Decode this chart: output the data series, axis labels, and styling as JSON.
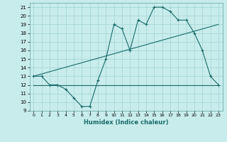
{
  "xlabel": "Humidex (Indice chaleur)",
  "ylabel": "",
  "bg_color": "#c8ecec",
  "grid_color": "#a8d8d8",
  "line_color": "#1a6b6b",
  "xlim": [
    -0.5,
    23.5
  ],
  "ylim": [
    9,
    21.5
  ],
  "yticks": [
    9,
    10,
    11,
    12,
    13,
    14,
    15,
    16,
    17,
    18,
    19,
    20,
    21
  ],
  "xticks": [
    0,
    1,
    2,
    3,
    4,
    5,
    6,
    7,
    8,
    9,
    10,
    11,
    12,
    13,
    14,
    15,
    16,
    17,
    18,
    19,
    20,
    21,
    22,
    23
  ],
  "main_x": [
    0,
    1,
    2,
    3,
    4,
    5,
    6,
    7,
    8,
    9,
    10,
    11,
    12,
    13,
    14,
    15,
    16,
    17,
    18,
    19,
    20,
    21,
    22,
    23
  ],
  "main_y": [
    13,
    13,
    12,
    12,
    11.5,
    10.5,
    9.5,
    9.5,
    12.5,
    15,
    19,
    18.5,
    16,
    19.5,
    19,
    21,
    21,
    20.5,
    19.5,
    19.5,
    18,
    16,
    13,
    12
  ],
  "trend1_x": [
    0,
    23
  ],
  "trend1_y": [
    13,
    19
  ],
  "trend2_x": [
    0,
    23
  ],
  "trend2_y": [
    12,
    12
  ]
}
